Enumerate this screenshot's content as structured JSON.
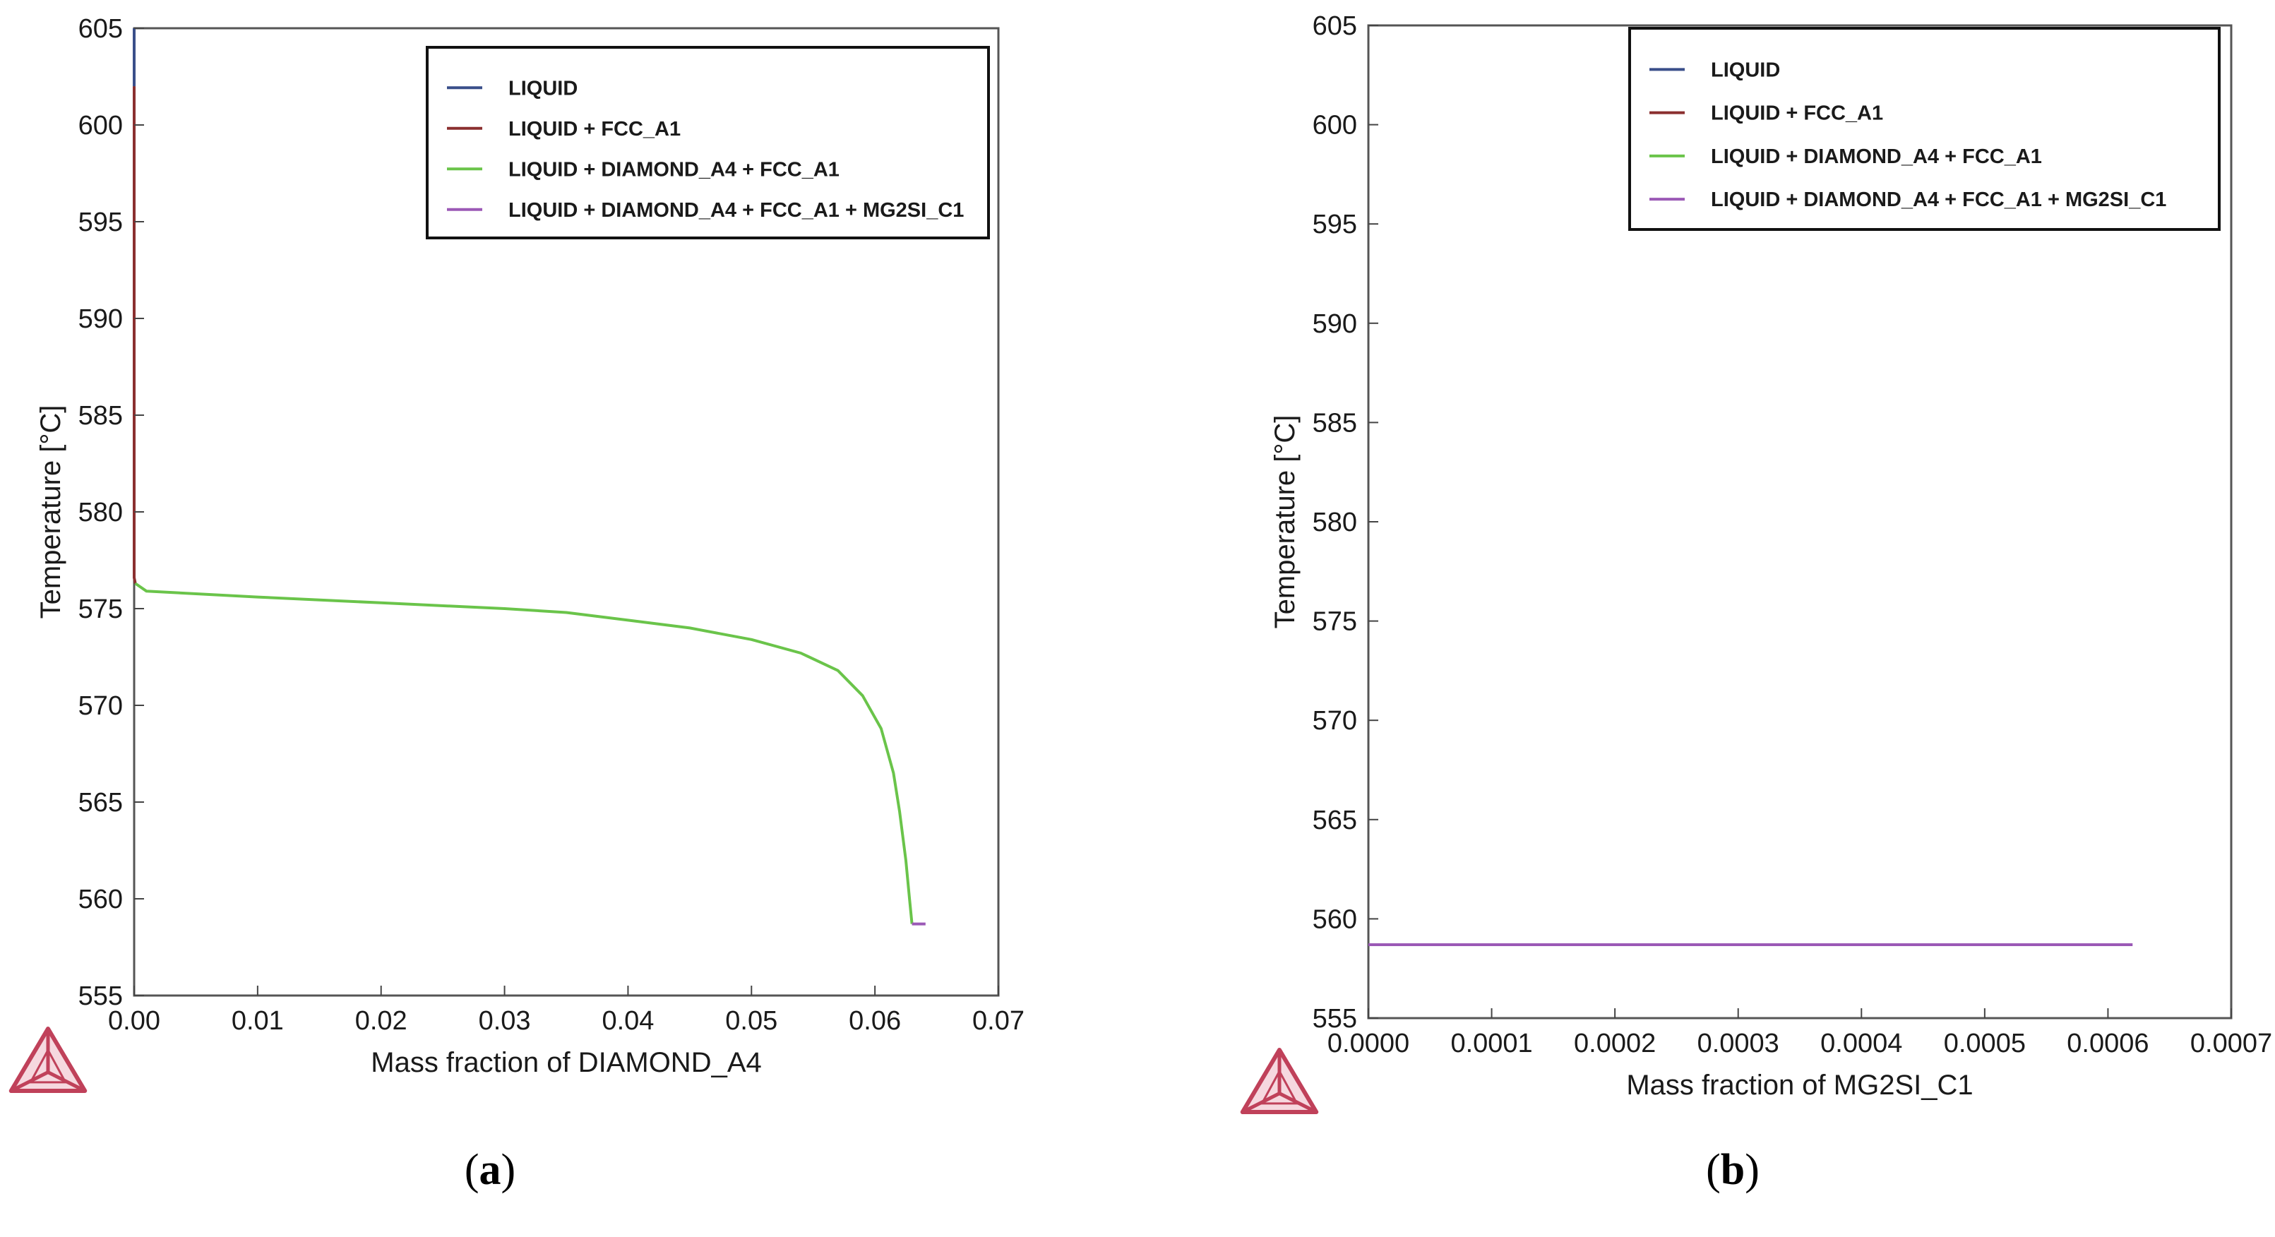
{
  "chart_data": [
    {
      "type": "line",
      "panel": "a",
      "xlabel": "Mass fraction of DIAMOND_A4",
      "ylabel": "Temperature [°C]",
      "xlim": [
        0,
        0.07
      ],
      "ylim": [
        555,
        605
      ],
      "xticks": [
        0,
        0.01,
        0.02,
        0.03,
        0.04,
        0.05,
        0.06,
        0.07
      ],
      "xtick_labels": [
        "0.00",
        "0.01",
        "0.02",
        "0.03",
        "0.04",
        "0.05",
        "0.06",
        "0.07"
      ],
      "yticks": [
        555,
        560,
        565,
        570,
        575,
        580,
        585,
        590,
        595,
        600,
        605
      ],
      "yticks_labels": [
        "555",
        "560",
        "565",
        "570",
        "575",
        "580",
        "585",
        "590",
        "595",
        "600",
        "605"
      ],
      "grid": false,
      "legend_position": "top-right",
      "series": [
        {
          "name": "LIQUID",
          "color": "#3a4f8a",
          "x": [
            0,
            0
          ],
          "y": [
            605,
            602
          ]
        },
        {
          "name": "LIQUID + FCC_A1",
          "color": "#8b2f2f",
          "x": [
            0,
            0,
            0.0001
          ],
          "y": [
            602,
            576.6,
            576.3
          ]
        },
        {
          "name": "LIQUID + DIAMOND_A4 + FCC_A1",
          "color": "#6ac44a",
          "x": [
            0.0001,
            0.001,
            0.01,
            0.02,
            0.03,
            0.035,
            0.04,
            0.045,
            0.05,
            0.054,
            0.057,
            0.059,
            0.0605,
            0.0615,
            0.062,
            0.0625,
            0.0628,
            0.063
          ],
          "y": [
            576.3,
            575.9,
            575.6,
            575.3,
            575.0,
            574.8,
            574.4,
            574.0,
            573.4,
            572.7,
            571.8,
            570.5,
            568.8,
            566.5,
            564.5,
            562.0,
            560.0,
            558.7
          ]
        },
        {
          "name": "LIQUID + DIAMOND_A4 + FCC_A1 + MG2SI_C1",
          "color": "#9b59b6",
          "x": [
            0.063,
            0.0641
          ],
          "y": [
            558.7,
            558.7
          ]
        }
      ]
    },
    {
      "type": "line",
      "panel": "b",
      "xlabel": "Mass fraction of MG2SI_C1",
      "ylabel": "Temperature [°C]",
      "xlim": [
        0,
        0.0007
      ],
      "ylim": [
        555,
        605
      ],
      "xticks": [
        0,
        0.0001,
        0.0002,
        0.0003,
        0.0004,
        0.0005,
        0.0006,
        0.0007
      ],
      "xtick_labels": [
        "0.0000",
        "0.0001",
        "0.0002",
        "0.0003",
        "0.0004",
        "0.0005",
        "0.0006",
        "0.0007"
      ],
      "yticks": [
        555,
        560,
        565,
        570,
        575,
        580,
        585,
        590,
        595,
        600,
        605
      ],
      "yticks_labels": [
        "555",
        "560",
        "565",
        "570",
        "575",
        "580",
        "585",
        "590",
        "595",
        "600",
        "605"
      ],
      "grid": false,
      "legend_position": "top-right",
      "series": [
        {
          "name": "LIQUID",
          "color": "#3a4f8a",
          "x": [],
          "y": []
        },
        {
          "name": "LIQUID + FCC_A1",
          "color": "#8b2f2f",
          "x": [],
          "y": []
        },
        {
          "name": "LIQUID + DIAMOND_A4 + FCC_A1",
          "color": "#6ac44a",
          "x": [],
          "y": []
        },
        {
          "name": "LIQUID + DIAMOND_A4 + FCC_A1 + MG2SI_C1",
          "color": "#9b59b6",
          "x": [
            0,
            0.00062
          ],
          "y": [
            558.7,
            558.7
          ]
        }
      ]
    }
  ],
  "panel_labels": [
    {
      "open": "(",
      "letter": "a",
      "close": ")"
    },
    {
      "open": "(",
      "letter": "b",
      "close": ")"
    }
  ],
  "colors": {
    "axis": "#222222",
    "logo": "#c0415a",
    "background": "#ffffff"
  },
  "logo_icon": "thermo-calc-triangle-logo"
}
